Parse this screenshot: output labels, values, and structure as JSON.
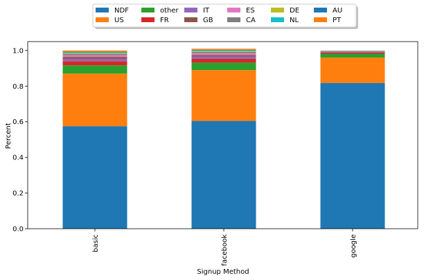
{
  "chart_data": {
    "type": "bar",
    "stacked": true,
    "categories": [
      "basic",
      "facebook",
      "google"
    ],
    "xlabel": "Signup Method",
    "ylabel": "Percent",
    "ylim": [
      0,
      1.05
    ],
    "yticks": [
      "0.0",
      "0.2",
      "0.4",
      "0.6",
      "0.8",
      "1.0"
    ],
    "grid": false,
    "legend": "top-center-outside",
    "series": [
      {
        "name": "NDF",
        "color": "#1f77b4",
        "values": [
          0.575,
          0.605,
          0.818
        ]
      },
      {
        "name": "US",
        "color": "#ff7f0e",
        "values": [
          0.295,
          0.285,
          0.142
        ]
      },
      {
        "name": "other",
        "color": "#2ca02c",
        "values": [
          0.047,
          0.042,
          0.022
        ]
      },
      {
        "name": "FR",
        "color": "#d62728",
        "values": [
          0.023,
          0.021,
          0.007
        ]
      },
      {
        "name": "IT",
        "color": "#9467bd",
        "values": [
          0.013,
          0.012,
          0.003
        ]
      },
      {
        "name": "GB",
        "color": "#8c564b",
        "values": [
          0.011,
          0.01,
          0.002
        ]
      },
      {
        "name": "ES",
        "color": "#e377c2",
        "values": [
          0.01,
          0.01,
          0.002
        ]
      },
      {
        "name": "CA",
        "color": "#7f7f7f",
        "values": [
          0.007,
          0.007,
          0.002
        ]
      },
      {
        "name": "DE",
        "color": "#bcbd22",
        "values": [
          0.005,
          0.005,
          0.001
        ]
      },
      {
        "name": "NL",
        "color": "#17becf",
        "values": [
          0.004,
          0.004,
          0.001
        ]
      },
      {
        "name": "AU",
        "color": "#1f77b4",
        "values": [
          0.003,
          0.003,
          0.0
        ]
      },
      {
        "name": "PT",
        "color": "#ff7f0e",
        "values": [
          0.007,
          0.006,
          0.0
        ]
      }
    ]
  }
}
